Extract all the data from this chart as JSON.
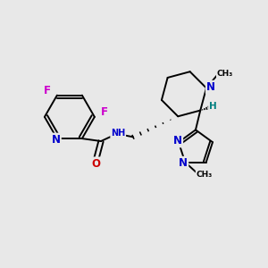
{
  "background_color": "#e8e8e8",
  "bond_color": "#000000",
  "N_color": "#0000cc",
  "O_color": "#cc0000",
  "F_color": "#cc00cc",
  "H_color": "#008080",
  "figsize": [
    3.0,
    3.0
  ],
  "dpi": 100,
  "xlim": [
    0,
    10
  ],
  "ylim": [
    0,
    10
  ]
}
